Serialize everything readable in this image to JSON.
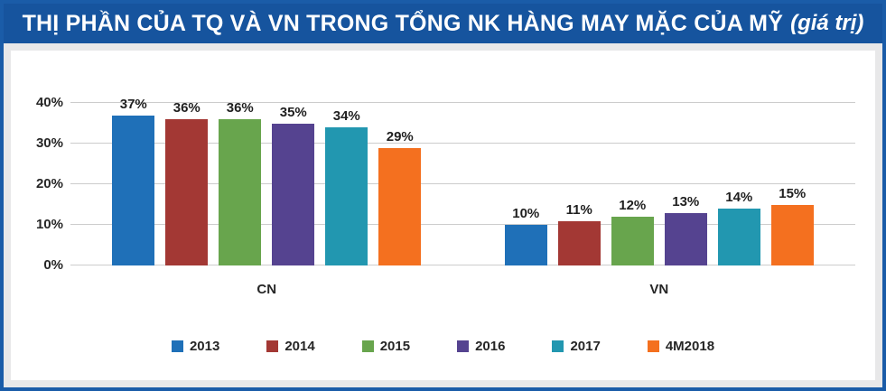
{
  "title": {
    "main": "THỊ PHẦN CỦA TQ VÀ VN TRONG TỔNG NK HÀNG MAY MẶC CỦA MỸ",
    "suffix": "(giá trị)"
  },
  "colors": {
    "banner": "#16549E",
    "border": "#1A5CA8",
    "background": "#E8E8E9",
    "gridline": "#CCCCCC"
  },
  "chart_data": {
    "type": "bar",
    "title": "THỊ PHẦN CỦA TQ VÀ VN TRONG TỔNG NK HÀNG MAY MẶC CỦA MỸ (giá trị)",
    "categories": [
      "CN",
      "VN"
    ],
    "series": [
      {
        "name": "2013",
        "color": "#1F70B8",
        "values": [
          37,
          10
        ]
      },
      {
        "name": "2014",
        "color": "#A33834",
        "values": [
          36,
          11
        ]
      },
      {
        "name": "2015",
        "color": "#68A54D",
        "values": [
          36,
          12
        ]
      },
      {
        "name": "2016",
        "color": "#554390",
        "values": [
          35,
          13
        ]
      },
      {
        "name": "2017",
        "color": "#2297B0",
        "values": [
          34,
          14
        ]
      },
      {
        "name": "4M2018",
        "color": "#F4701F",
        "values": [
          29,
          15
        ]
      }
    ],
    "value_suffix": "%",
    "xlabel": "",
    "ylabel": "",
    "yticks": [
      "0%",
      "10%",
      "20%",
      "30%",
      "40%"
    ],
    "ylim": [
      0,
      40
    ],
    "grid": true,
    "legend_position": "bottom"
  }
}
